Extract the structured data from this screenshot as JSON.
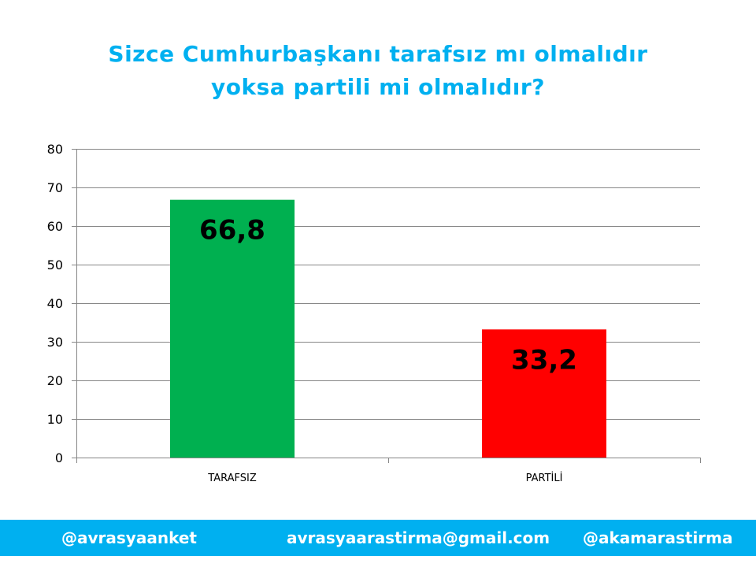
{
  "title_lines": [
    "Sizce Cumhurbaşkanı tarafsız mı olmalıdır",
    "yoksa partili mi olmalıdır?"
  ],
  "chart_data": {
    "type": "bar",
    "title": "Sizce Cumhurbaşkanı tarafsız mı olmalıdır yoksa partili mi olmalıdır?",
    "categories": [
      "TARAFSIZ",
      "PARTİLİ"
    ],
    "values": [
      66.8,
      33.2
    ],
    "value_labels": [
      "66,8",
      "33,2"
    ],
    "bar_colors": [
      "#00b050",
      "#ff0000"
    ],
    "ylim": [
      0,
      80
    ],
    "yticks": [
      0,
      10,
      20,
      30,
      40,
      50,
      60,
      70,
      80
    ],
    "grid": true,
    "legend": "none",
    "xlabel": "",
    "ylabel": ""
  },
  "footer": {
    "left": "@avrasyaanket",
    "center": "avrasyaarastirma@gmail.com",
    "right": "@akamarastirma",
    "background": "#00b0f0"
  }
}
